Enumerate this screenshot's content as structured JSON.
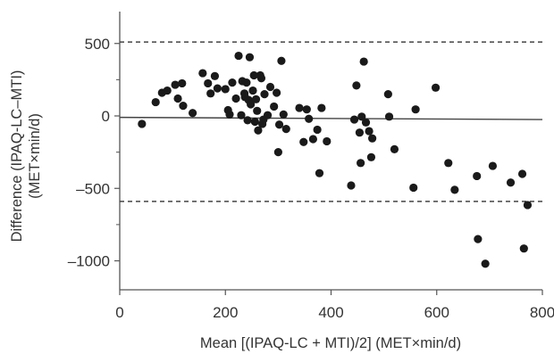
{
  "chart_data": {
    "type": "scatter",
    "title": "",
    "xlabel": "Mean [(IPAQ-LC + MTI)/2] (MET×min/d)",
    "ylabel_line1": "Difference (IPAQ-LC–MTI)",
    "ylabel_line2": "(MET×min/d)",
    "xlim": [
      0,
      800
    ],
    "ylim": [
      -1200,
      720
    ],
    "xticks": [
      0,
      200,
      400,
      600,
      800
    ],
    "xtick_labels": [
      "0",
      "200",
      "400",
      "600",
      "800"
    ],
    "yticks": [
      500,
      0,
      -500,
      -1000
    ],
    "ytick_labels": [
      "500",
      "0",
      "–500",
      "–1000"
    ],
    "grid": false,
    "legend": "none",
    "colors": {
      "points": "#1a1a1a",
      "axis": "#555555",
      "lines": "#444444"
    },
    "reference_lines": [
      {
        "kind": "mean_difference",
        "style": "solid",
        "y_at_x_start": -10,
        "y_at_x_end": -25
      },
      {
        "kind": "upper_limit_of_agreement",
        "style": "dashed",
        "y": 510
      },
      {
        "kind": "lower_limit_of_agreement",
        "style": "dashed",
        "y": -590
      }
    ],
    "series": [
      {
        "points": [
          [
            42,
            -55
          ],
          [
            68,
            95
          ],
          [
            80,
            160
          ],
          [
            90,
            175
          ],
          [
            105,
            215
          ],
          [
            110,
            120
          ],
          [
            118,
            225
          ],
          [
            120,
            70
          ],
          [
            138,
            20
          ],
          [
            157,
            295
          ],
          [
            167,
            225
          ],
          [
            172,
            155
          ],
          [
            180,
            275
          ],
          [
            185,
            190
          ],
          [
            200,
            185
          ],
          [
            205,
            40
          ],
          [
            208,
            10
          ],
          [
            213,
            230
          ],
          [
            220,
            120
          ],
          [
            225,
            415
          ],
          [
            230,
            5
          ],
          [
            232,
            240
          ],
          [
            236,
            155
          ],
          [
            237,
            130
          ],
          [
            240,
            230
          ],
          [
            242,
            -30
          ],
          [
            244,
            110
          ],
          [
            246,
            405
          ],
          [
            248,
            80
          ],
          [
            252,
            175
          ],
          [
            254,
            280
          ],
          [
            256,
            -40
          ],
          [
            258,
            115
          ],
          [
            260,
            35
          ],
          [
            262,
            -100
          ],
          [
            266,
            280
          ],
          [
            268,
            260
          ],
          [
            270,
            -55
          ],
          [
            272,
            -25
          ],
          [
            274,
            150
          ],
          [
            280,
            5
          ],
          [
            285,
            200
          ],
          [
            292,
            65
          ],
          [
            297,
            160
          ],
          [
            300,
            -250
          ],
          [
            302,
            -60
          ],
          [
            306,
            380
          ],
          [
            310,
            10
          ],
          [
            315,
            -90
          ],
          [
            340,
            55
          ],
          [
            348,
            -180
          ],
          [
            354,
            45
          ],
          [
            358,
            -20
          ],
          [
            366,
            -160
          ],
          [
            374,
            -95
          ],
          [
            378,
            -395
          ],
          [
            382,
            55
          ],
          [
            392,
            -175
          ],
          [
            438,
            -480
          ],
          [
            444,
            -25
          ],
          [
            448,
            210
          ],
          [
            454,
            -115
          ],
          [
            456,
            -325
          ],
          [
            458,
            -5
          ],
          [
            462,
            375
          ],
          [
            466,
            -45
          ],
          [
            472,
            -105
          ],
          [
            476,
            -285
          ],
          [
            478,
            -155
          ],
          [
            508,
            150
          ],
          [
            510,
            -5
          ],
          [
            520,
            -230
          ],
          [
            556,
            -495
          ],
          [
            560,
            45
          ],
          [
            598,
            195
          ],
          [
            622,
            -325
          ],
          [
            634,
            -510
          ],
          [
            676,
            -415
          ],
          [
            678,
            -850
          ],
          [
            692,
            -1020
          ],
          [
            706,
            -345
          ],
          [
            740,
            -460
          ],
          [
            762,
            -400
          ],
          [
            765,
            -915
          ],
          [
            772,
            -615
          ]
        ]
      }
    ]
  }
}
